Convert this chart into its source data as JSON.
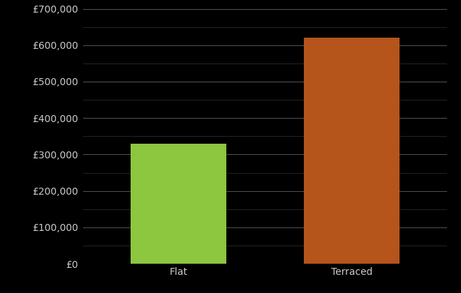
{
  "categories": [
    "Flat",
    "Terraced"
  ],
  "values": [
    330000,
    620000
  ],
  "bar_colors": [
    "#8dc63f",
    "#b5541b"
  ],
  "background_color": "#000000",
  "text_color": "#cccccc",
  "grid_color_major": "#555555",
  "grid_color_minor": "#333333",
  "ylim": [
    0,
    700000
  ],
  "ytick_step": 100000,
  "ylabel": "",
  "tick_label_fontsize": 10,
  "category_fontsize": 10,
  "bar_width": 0.55
}
